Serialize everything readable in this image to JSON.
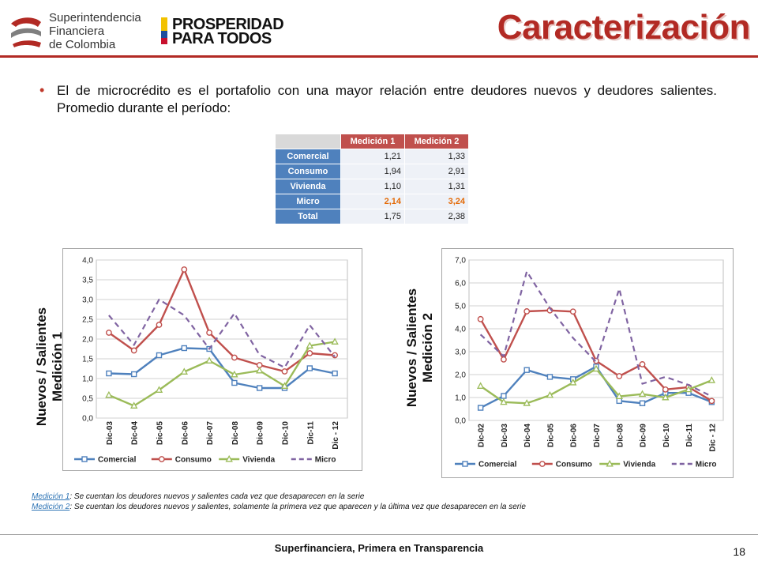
{
  "header": {
    "org_lines": [
      "Superintendencia",
      "Financiera",
      "de Colombia"
    ],
    "gov_lines": [
      "PROSPERIDAD",
      "PARA TODOS"
    ],
    "title": "Caracterización"
  },
  "bullet": "El de microcrédito es el portafolio con una mayor relación entre deudores nuevos y deudores salientes. Promedio durante el período:",
  "summary_table": {
    "columns": [
      "Medición 1",
      "Medición 2"
    ],
    "rows": [
      {
        "label": "Comercial",
        "m1": "1,21",
        "m2": "1,33"
      },
      {
        "label": "Consumo",
        "m1": "1,94",
        "m2": "2,91"
      },
      {
        "label": "Vivienda",
        "m1": "1,10",
        "m2": "1,31"
      },
      {
        "label": "Micro",
        "m1": "2,14",
        "m2": "3,24"
      },
      {
        "label": "Total",
        "m1": "1,75",
        "m2": "2,38"
      }
    ]
  },
  "chart_labels": {
    "chart1": [
      "Nuevos / Salientes",
      "Medición 1"
    ],
    "chart2": [
      "Nuevos / Salientes",
      "Medición 2"
    ]
  },
  "chart_data": [
    {
      "type": "line",
      "categories": [
        "Dic-03",
        "Dic-04",
        "Dic-05",
        "Dic-06",
        "Dic-07",
        "Dic-08",
        "Dic-09",
        "Dic-10",
        "Dic-11",
        "Dic - 12"
      ],
      "ylim": [
        0,
        4.0
      ],
      "yticks": [
        "0,0",
        "0,5",
        "1,0",
        "1,5",
        "2,0",
        "2,5",
        "3,0",
        "3,5",
        "4,0"
      ],
      "grid": true,
      "legend": "bottom",
      "series": [
        {
          "name": "Comercial",
          "color": "#4f81bd",
          "marker": "square",
          "dash": false,
          "values": [
            1.13,
            1.11,
            1.59,
            1.77,
            1.75,
            0.89,
            0.76,
            0.76,
            1.26,
            1.13
          ]
        },
        {
          "name": "Consumo",
          "color": "#c0504d",
          "marker": "circle",
          "dash": false,
          "values": [
            2.16,
            1.71,
            2.36,
            3.76,
            2.16,
            1.53,
            1.34,
            1.18,
            1.64,
            1.59
          ]
        },
        {
          "name": "Vivienda",
          "color": "#9bbb59",
          "marker": "triangle",
          "dash": false,
          "values": [
            0.58,
            0.31,
            0.71,
            1.17,
            1.45,
            1.1,
            1.2,
            0.81,
            1.83,
            1.93
          ]
        },
        {
          "name": "Micro",
          "color": "#8064a2",
          "marker": "none",
          "dash": true,
          "values": [
            2.6,
            1.85,
            3.0,
            2.6,
            1.75,
            2.65,
            1.6,
            1.28,
            2.35,
            1.55
          ]
        }
      ]
    },
    {
      "type": "line",
      "categories": [
        "Dic-02",
        "Dic-03",
        "Dic-04",
        "Dic-05",
        "Dic-06",
        "Dic-07",
        "Dic-08",
        "Dic-09",
        "Dic-10",
        "Dic-11",
        "Dic - 12"
      ],
      "ylim": [
        0,
        7.0
      ],
      "yticks": [
        "0,0",
        "1,0",
        "2,0",
        "3,0",
        "4,0",
        "5,0",
        "6,0",
        "7,0"
      ],
      "grid": true,
      "legend": "bottom",
      "series": [
        {
          "name": "Comercial",
          "color": "#4f81bd",
          "marker": "square",
          "dash": false,
          "values": [
            0.55,
            1.07,
            2.2,
            1.9,
            1.8,
            2.35,
            0.85,
            0.75,
            1.2,
            1.2,
            0.8
          ]
        },
        {
          "name": "Consumo",
          "color": "#c0504d",
          "marker": "circle",
          "dash": false,
          "values": [
            4.42,
            2.66,
            4.76,
            4.8,
            4.75,
            2.6,
            1.93,
            2.45,
            1.35,
            1.45,
            0.85
          ]
        },
        {
          "name": "Vivienda",
          "color": "#9bbb59",
          "marker": "triangle",
          "dash": false,
          "values": [
            1.5,
            0.8,
            0.75,
            1.1,
            1.65,
            2.25,
            1.05,
            1.15,
            1.0,
            1.35,
            1.75
          ]
        },
        {
          "name": "Micro",
          "color": "#8064a2",
          "marker": "none",
          "dash": true,
          "values": [
            3.75,
            2.8,
            6.5,
            4.9,
            3.6,
            2.55,
            5.75,
            1.6,
            1.9,
            1.55,
            1.05
          ]
        }
      ]
    }
  ],
  "notes": [
    {
      "label": "Medición 1",
      "text": ": Se cuentan los deudores nuevos y salientes cada vez que desaparecen en la serie"
    },
    {
      "label": "Medición 2",
      "text": ": Se cuentan los deudores nuevos y salientes, solamente la primera vez que aparecen y la última vez que desaparecen en la serie"
    }
  ],
  "footer": "Superfinanciera, Primera en Transparencia",
  "page_number": "18",
  "colors": {
    "accent": "#b22a24",
    "table_header": "#c0504d",
    "table_rows": "#4f81bd",
    "highlight": "#e46c0a"
  }
}
